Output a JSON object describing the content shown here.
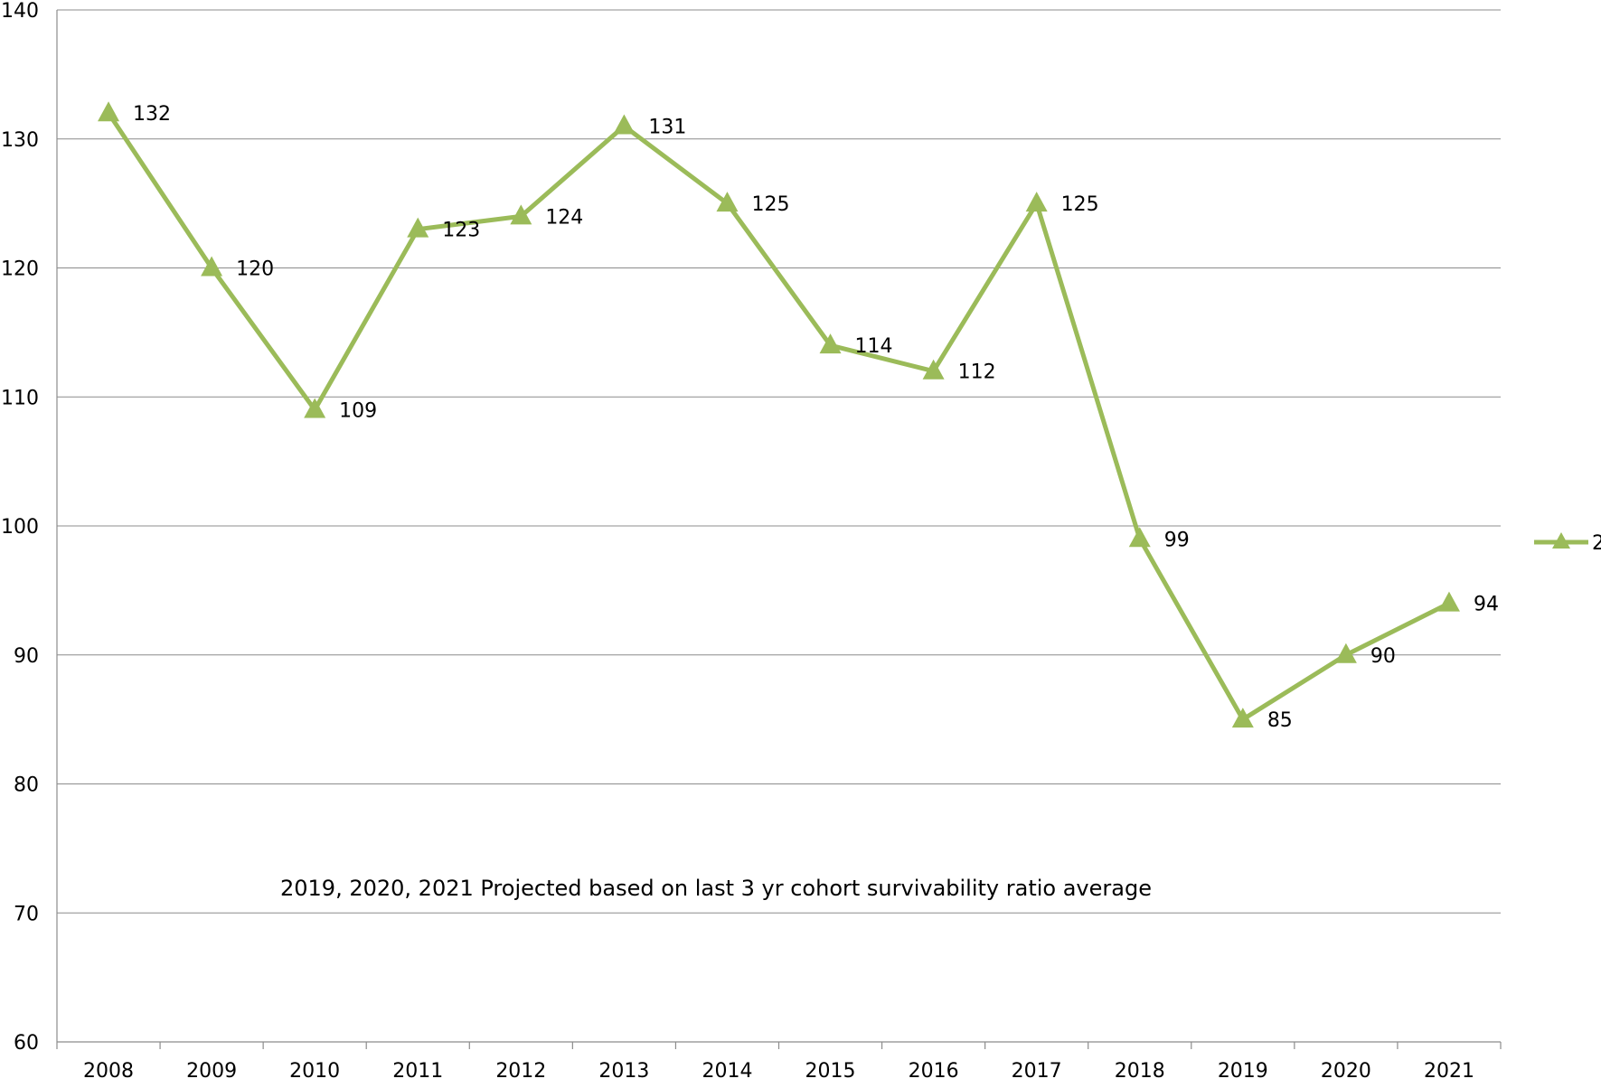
{
  "chart_data": {
    "type": "line",
    "categories": [
      "2008",
      "2009",
      "2010",
      "2011",
      "2012",
      "2013",
      "2014",
      "2015",
      "2016",
      "2017",
      "2018",
      "2019",
      "2020",
      "2021"
    ],
    "series": [
      {
        "name": "2",
        "values": [
          132,
          120,
          109,
          123,
          124,
          131,
          125,
          114,
          112,
          125,
          99,
          85,
          90,
          94
        ],
        "data_labels": [
          "132",
          "120",
          "109",
          "123",
          "124",
          "131",
          "125",
          "114",
          "112",
          "125",
          "99",
          "85",
          "90",
          "94"
        ],
        "color": "#9BBB59",
        "marker": "triangle"
      }
    ],
    "ylim": [
      60,
      140
    ],
    "yticks": [
      "60",
      "70",
      "80",
      "90",
      "100",
      "110",
      "120",
      "130",
      "140"
    ],
    "grid": true,
    "legend_position": "right",
    "annotation": "2019, 2020, 2021 Projected based on last 3 yr cohort survivability ratio average",
    "title": "",
    "xlabel": "",
    "ylabel": ""
  }
}
